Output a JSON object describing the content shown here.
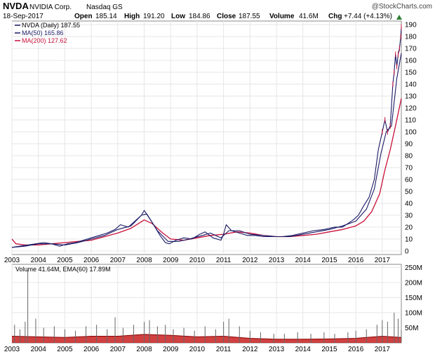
{
  "header": {
    "symbol": "NVDA",
    "company": "NVIDIA Corp.",
    "exchange": "Nasdaq GS",
    "copyright": "@StockCharts.com",
    "date": "18-Sep-2017",
    "open_label": "Open",
    "open": "185.14",
    "high_label": "High",
    "high": "191.20",
    "low_label": "Low",
    "low": "184.86",
    "close_label": "Close",
    "close": "187.55",
    "volume_label": "Volume",
    "volume": "41.6M",
    "chg_label": "Chg",
    "chg": "+7.44 (+4.13%)"
  },
  "legend": {
    "price": "NVDA (Daily) 187.55",
    "ma50": "MA(50) 165.86",
    "ma200": "MA(200) 127.62",
    "volume": "Volume 41.64M, EMA(60) 17.89M"
  },
  "colors": {
    "price": "#1a1a66",
    "ma50": "#1a1a66",
    "ma200": "#c8103a",
    "grid": "#e6e6e6",
    "volume_fill": "#c82020",
    "volume_bar": "#666666",
    "up_spike": "#c8103a"
  },
  "chart_data": [
    {
      "type": "line",
      "title": "NVDA NVIDIA Corp. Nasdaq GS",
      "xlabel": "",
      "ylabel": "",
      "x_ticks": [
        "2003",
        "2004",
        "2005",
        "2006",
        "2007",
        "2008",
        "2009",
        "2010",
        "2011",
        "2012",
        "2013",
        "2014",
        "2015",
        "2016",
        "2017"
      ],
      "xlim": [
        2003.0,
        2017.72
      ],
      "y_ticks": [
        0,
        10,
        20,
        30,
        40,
        50,
        60,
        70,
        80,
        90,
        100,
        110,
        120,
        130,
        140,
        150,
        160,
        170,
        180,
        190
      ],
      "ylim": [
        -3,
        193
      ],
      "grid": true,
      "series": [
        {
          "name": "NVDA (Daily)",
          "x": [
            2003.0,
            2003.3,
            2003.6,
            2003.9,
            2004.2,
            2004.5,
            2004.8,
            2005.1,
            2005.4,
            2005.7,
            2006.0,
            2006.3,
            2006.6,
            2006.9,
            2007.1,
            2007.4,
            2007.7,
            2007.9,
            2008.0,
            2008.3,
            2008.6,
            2008.8,
            2008.95,
            2009.2,
            2009.5,
            2009.8,
            2010.1,
            2010.3,
            2010.6,
            2010.9,
            2011.0,
            2011.1,
            2011.3,
            2011.6,
            2011.9,
            2012.2,
            2012.5,
            2012.8,
            2013.2,
            2013.6,
            2014.0,
            2014.4,
            2014.8,
            2015.2,
            2015.5,
            2015.9,
            2016.1,
            2016.3,
            2016.5,
            2016.7,
            2016.85,
            2017.0,
            2017.1,
            2017.2,
            2017.3,
            2017.4,
            2017.45,
            2017.5,
            2017.55,
            2017.6,
            2017.65,
            2017.7,
            2017.72
          ],
          "values": [
            3,
            4,
            5,
            6,
            7,
            6,
            4,
            6,
            7,
            9,
            11,
            13,
            15,
            18,
            22,
            20,
            26,
            30,
            34,
            24,
            13,
            7,
            6,
            9,
            11,
            10,
            14,
            16,
            11,
            9,
            14,
            22,
            17,
            15,
            13,
            13,
            12,
            12,
            12,
            13,
            15,
            17,
            18,
            20,
            20,
            26,
            30,
            38,
            45,
            60,
            85,
            100,
            110,
            100,
            105,
            140,
            150,
            165,
            155,
            165,
            170,
            180,
            188
          ]
        },
        {
          "name": "MA(50)",
          "x": [
            2003.0,
            2003.5,
            2004.0,
            2004.5,
            2005.0,
            2005.5,
            2006.0,
            2006.5,
            2007.0,
            2007.5,
            2007.9,
            2008.1,
            2008.5,
            2008.9,
            2009.3,
            2009.7,
            2010.2,
            2010.5,
            2010.9,
            2011.2,
            2011.6,
            2012.0,
            2012.5,
            2013.0,
            2013.5,
            2014.0,
            2014.5,
            2015.0,
            2015.5,
            2016.0,
            2016.4,
            2016.7,
            2016.95,
            2017.15,
            2017.35,
            2017.55,
            2017.72
          ],
          "values": [
            3,
            4,
            6,
            6,
            5,
            7,
            10,
            13,
            18,
            21,
            30,
            31,
            17,
            8,
            8,
            10,
            13,
            15,
            11,
            17,
            17,
            14,
            13,
            12,
            12,
            14,
            16,
            18,
            21,
            25,
            35,
            52,
            82,
            100,
            105,
            145,
            166
          ]
        },
        {
          "name": "MA(200)",
          "x": [
            2003.0,
            2003.15,
            2003.5,
            2004.0,
            2004.5,
            2005.0,
            2005.5,
            2006.0,
            2006.5,
            2007.0,
            2007.5,
            2008.0,
            2008.3,
            2008.7,
            2009.0,
            2009.5,
            2010.0,
            2010.5,
            2011.0,
            2011.5,
            2012.0,
            2012.5,
            2013.0,
            2013.5,
            2014.0,
            2014.5,
            2015.0,
            2015.5,
            2016.0,
            2016.3,
            2016.6,
            2016.9,
            2017.1,
            2017.3,
            2017.5,
            2017.72
          ],
          "values": [
            10,
            6,
            5,
            5,
            6,
            7,
            8,
            9,
            12,
            15,
            19,
            26,
            23,
            15,
            10,
            9,
            11,
            13,
            14,
            16,
            15,
            13,
            12,
            12,
            13,
            14,
            16,
            18,
            21,
            25,
            33,
            48,
            68,
            85,
            105,
            128
          ]
        }
      ]
    },
    {
      "type": "bar",
      "title": "Volume 41.64M, EMA(60) 17.89M",
      "x_ticks": [
        "2003",
        "2004",
        "2005",
        "2006",
        "2007",
        "2008",
        "2009",
        "2010",
        "2011",
        "2012",
        "2013",
        "2014",
        "2015",
        "2016",
        "2017"
      ],
      "xlim": [
        2003.0,
        2017.72
      ],
      "y_ticks": [
        "50M",
        "100M",
        "150M",
        "200M",
        "250M"
      ],
      "ylim": [
        0,
        260
      ],
      "grid": true,
      "series": [
        {
          "name": "Volume",
          "x": [
            2003.1,
            2003.3,
            2003.5,
            2003.6,
            2003.9,
            2004.2,
            2004.6,
            2005.0,
            2005.4,
            2005.8,
            2006.2,
            2006.6,
            2006.9,
            2007.2,
            2007.6,
            2008.0,
            2008.2,
            2008.5,
            2008.8,
            2009.1,
            2009.5,
            2009.9,
            2010.3,
            2010.7,
            2011.0,
            2011.2,
            2011.6,
            2012.0,
            2012.4,
            2012.9,
            2013.3,
            2013.8,
            2014.3,
            2014.8,
            2015.2,
            2015.7,
            2016.0,
            2016.4,
            2016.8,
            2017.0,
            2017.2,
            2017.45,
            2017.6,
            2017.72
          ],
          "values": [
            60,
            45,
            70,
            240,
            80,
            50,
            55,
            45,
            40,
            55,
            60,
            45,
            85,
            50,
            60,
            70,
            75,
            55,
            60,
            45,
            50,
            40,
            55,
            45,
            70,
            80,
            55,
            40,
            35,
            30,
            30,
            35,
            30,
            35,
            30,
            35,
            40,
            45,
            60,
            75,
            70,
            100,
            80,
            42
          ]
        },
        {
          "name": "EMA(60)",
          "x": [
            2003.0,
            2004.0,
            2005.0,
            2006.0,
            2007.0,
            2008.0,
            2009.0,
            2010.0,
            2011.0,
            2012.0,
            2013.0,
            2014.0,
            2015.0,
            2016.0,
            2017.0,
            2017.72
          ],
          "values": [
            22,
            20,
            18,
            22,
            22,
            28,
            25,
            20,
            22,
            15,
            12,
            12,
            13,
            15,
            22,
            18
          ]
        }
      ]
    }
  ]
}
